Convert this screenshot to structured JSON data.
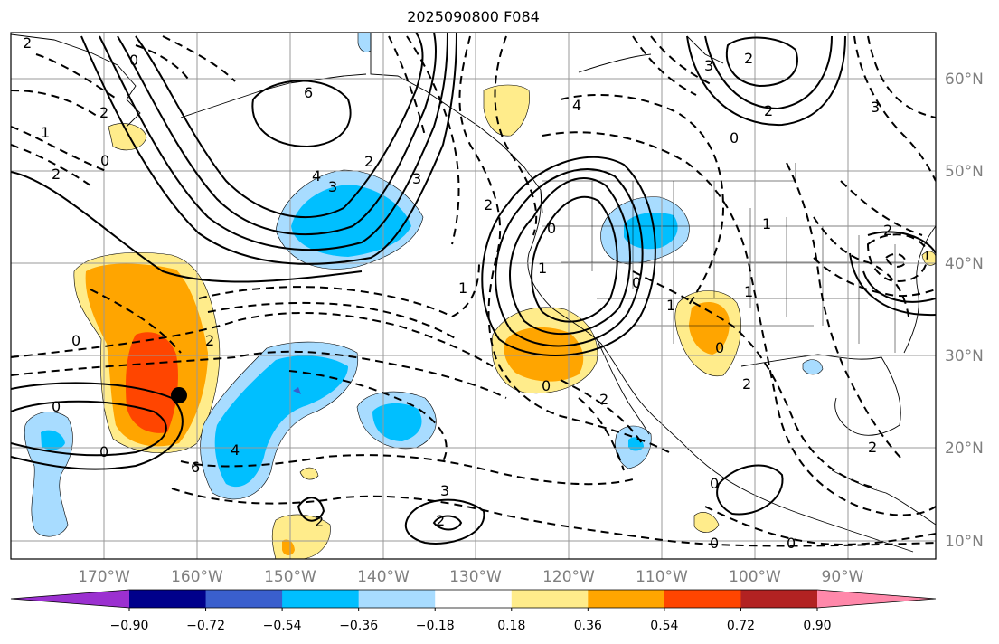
{
  "title": "2025090800 F084",
  "lat_labels": [
    "60°N",
    "50°N",
    "40°N",
    "30°N",
    "20°N",
    "10°N"
  ],
  "lon_labels": [
    "170°W",
    "160°W",
    "150°W",
    "140°W",
    "130°W",
    "120°W",
    "110°W",
    "100°W",
    "90°W"
  ],
  "colorbar": {
    "ticks": [
      "−0.90",
      "−0.72",
      "−0.54",
      "−0.36",
      "−0.18",
      "0.18",
      "0.36",
      "0.54",
      "0.72",
      "0.90"
    ],
    "colors": [
      "#9b30d0",
      "#00008b",
      "#3a5fcd",
      "#00bfff",
      "#a8dcff",
      "#ffffff",
      "#ffec8b",
      "#ffa500",
      "#ff4500",
      "#b22222",
      "#ff88aa"
    ]
  },
  "contour_labels": [
    "2",
    "0",
    "2",
    "1",
    "2",
    "0",
    "6",
    "4",
    "3",
    "2",
    "3",
    "4",
    "2",
    "3",
    "2",
    "0",
    "1",
    "2",
    "0",
    "1",
    "0",
    "2",
    "0",
    "0",
    "6",
    "4",
    "2",
    "3",
    "2",
    "0",
    "2",
    "2",
    "0",
    "1",
    "1",
    "0",
    "1",
    "0",
    "2",
    "2",
    "0",
    "0",
    "3"
  ],
  "marker": "black-dot"
}
